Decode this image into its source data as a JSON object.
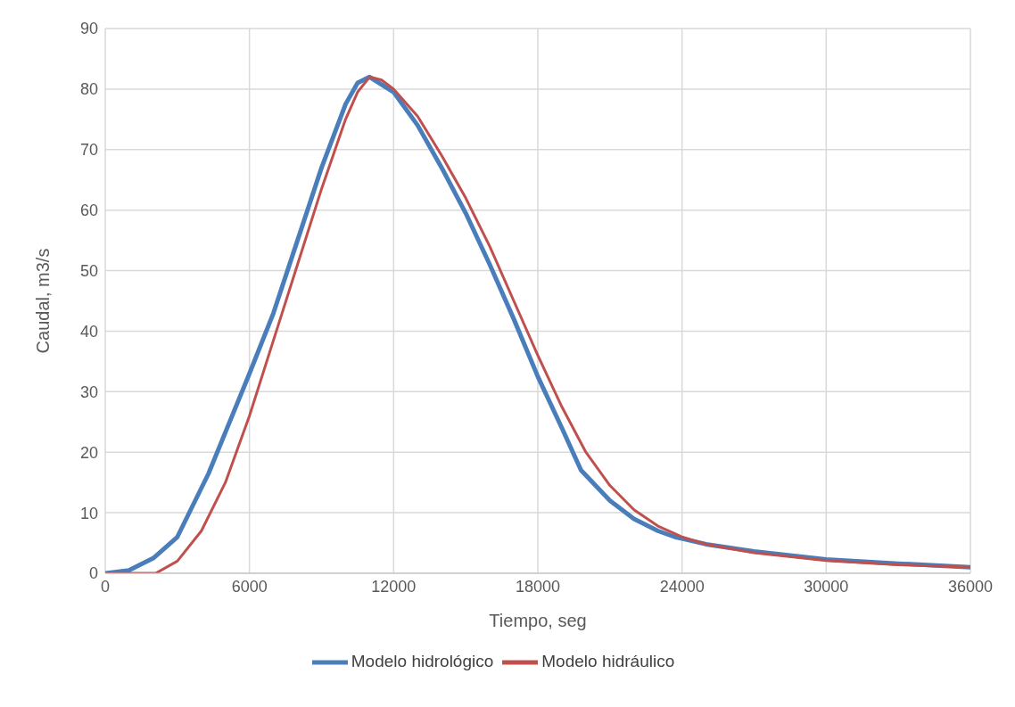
{
  "chart_data": {
    "type": "line",
    "xlabel": "Tiempo, seg",
    "ylabel": "Caudal, m3/s",
    "xlim": [
      0,
      36000
    ],
    "xticks": [
      0,
      6000,
      12000,
      18000,
      24000,
      30000,
      36000
    ],
    "ylim": [
      0,
      90
    ],
    "yticks": [
      0,
      10,
      20,
      30,
      40,
      50,
      60,
      70,
      80,
      90
    ],
    "grid": true,
    "legend": "bottom",
    "marker": "none",
    "line_style": "solid",
    "series": [
      {
        "name": "Modelo hidrológico",
        "color": "#4a7ebb",
        "x": [
          0,
          1000,
          2000,
          3000,
          4300,
          6000,
          7000,
          8000,
          9000,
          10000,
          10500,
          11000,
          12000,
          13000,
          14000,
          15000,
          16000,
          17000,
          18000,
          19000,
          19800,
          21000,
          22000,
          23000,
          23700,
          25000,
          27000,
          30000,
          33000,
          36000
        ],
        "values": [
          0,
          0.5,
          2.5,
          6,
          16.5,
          33,
          43,
          55,
          67,
          77.5,
          81,
          82,
          79.5,
          74,
          67,
          59.5,
          51,
          42,
          32.5,
          24,
          17,
          12,
          9,
          7,
          6,
          4.8,
          3.6,
          2.3,
          1.6,
          1
        ]
      },
      {
        "name": "Modelo hidráulico",
        "color": "#c0504d",
        "x": [
          0,
          2100,
          3000,
          4000,
          5000,
          6000,
          7000,
          8000,
          9000,
          10000,
          10500,
          11000,
          11500,
          12000,
          13000,
          14000,
          15000,
          16000,
          17000,
          18000,
          19000,
          20000,
          21000,
          22000,
          23000,
          24000,
          25000,
          27000,
          30000,
          33000,
          36000
        ],
        "values": [
          0,
          0,
          2,
          7,
          15,
          26,
          38.5,
          51,
          63.5,
          75,
          79.5,
          82,
          81.5,
          80,
          75.5,
          69,
          62,
          54,
          45,
          36,
          27.5,
          20,
          14.5,
          10.5,
          7.8,
          6,
          4.8,
          3.4,
          2.1,
          1.4,
          1
        ]
      }
    ]
  }
}
